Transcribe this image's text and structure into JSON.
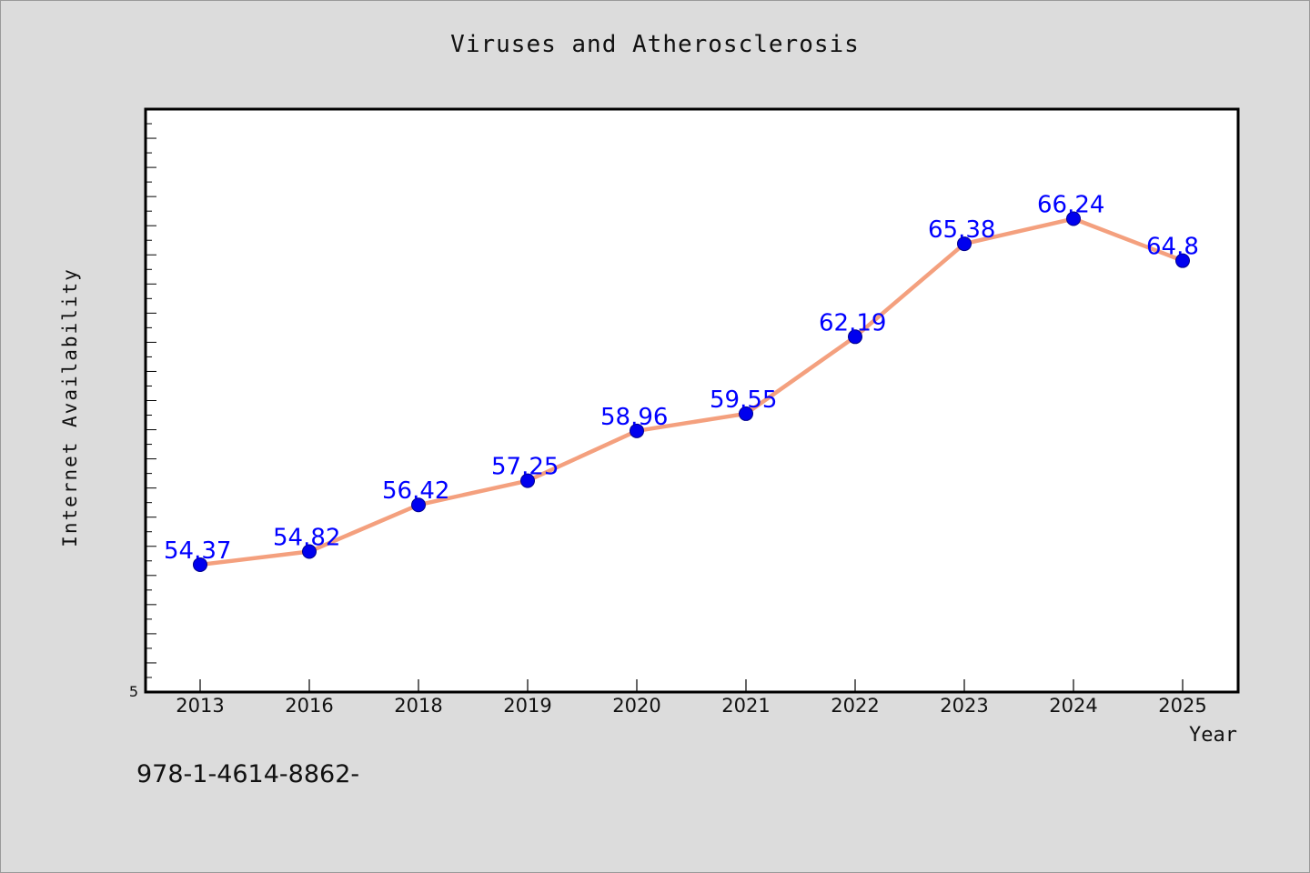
{
  "chart_data": {
    "type": "line",
    "title": "Viruses and Atherosclerosis",
    "xlabel": "Year",
    "ylabel": "Internet Availability",
    "categories": [
      "2013",
      "2016",
      "2018",
      "2019",
      "2020",
      "2021",
      "2022",
      "2023",
      "2024",
      "2025"
    ],
    "series": [
      {
        "values": [
          54.37,
          54.82,
          56.42,
          57.25,
          58.96,
          59.55,
          62.19,
          65.38,
          66.24,
          64.8
        ]
      }
    ],
    "data_labels": [
      "54.37",
      "54.82",
      "56.42",
      "57.25",
      "58.96",
      "59.55",
      "62.19",
      "65.38",
      "66.24",
      "64.8"
    ],
    "ylim": [
      50,
      70
    ],
    "y_tick_labels": [
      "5"
    ],
    "grid": false,
    "legend": "none",
    "colors": {
      "line": "#f4a07e",
      "marker": "#0000ee",
      "data_label": "#0000ff",
      "plot_background": "#ffffff",
      "page_background": "#dcdcdc"
    }
  },
  "footnote": "978-1-4614-8862-"
}
